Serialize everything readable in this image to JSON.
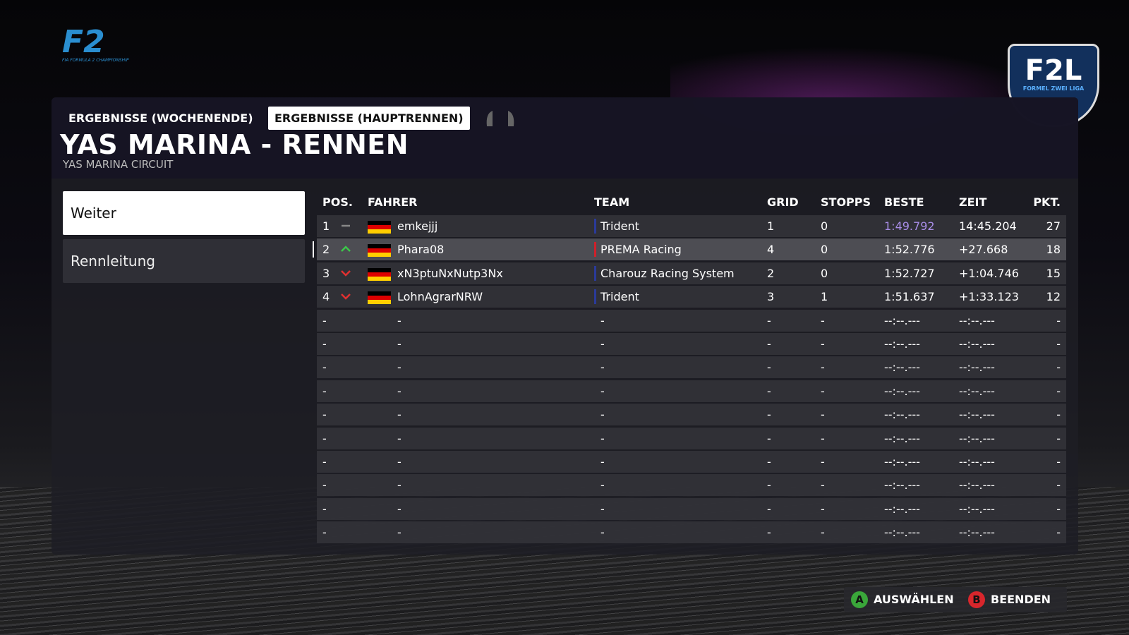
{
  "logo": {
    "text": "F2",
    "subtitle": "FIA FORMULA 2 CHAMPIONSHIP"
  },
  "league_logo": {
    "text": "F2L",
    "subtitle": "FORMEL ZWEI LIGA"
  },
  "tabs": [
    {
      "label": "ERGEBNISSE (WOCHENENDE)",
      "active": false
    },
    {
      "label": "ERGEBNISSE (HAUPTRENNEN)",
      "active": true
    }
  ],
  "header": {
    "title": "YAS MARINA - RENNEN",
    "subtitle": "YAS MARINA CIRCUIT"
  },
  "menu": [
    {
      "label": "Weiter",
      "selected": true
    },
    {
      "label": "Rennleitung",
      "selected": false
    }
  ],
  "table": {
    "columns": [
      "POS.",
      "FAHRER",
      "TEAM",
      "GRID",
      "STOPPS",
      "BESTE",
      "ZEIT",
      "PKT."
    ],
    "rows": [
      {
        "pos": 1,
        "trend": "same",
        "flag": "de",
        "driver": "emkejjj",
        "team": "Trident",
        "team_color": "#2a3a9a",
        "grid": 1,
        "stops": 0,
        "best": "1:49.792",
        "best_fastest": true,
        "time": "14:45.204",
        "pts": 27
      },
      {
        "pos": 2,
        "trend": "up",
        "flag": "de",
        "driver": "Phara08",
        "team": "PREMA Racing",
        "team_color": "#d0202a",
        "grid": 4,
        "stops": 0,
        "best": "1:52.776",
        "time": "+27.668",
        "pts": 18,
        "selected": true
      },
      {
        "pos": 3,
        "trend": "down",
        "flag": "de",
        "driver": "xN3ptuNxNutp3Nx",
        "team": "Charouz Racing System",
        "team_color": "#2a3a9a",
        "grid": 2,
        "stops": 0,
        "best": "1:52.727",
        "time": "+1:04.746",
        "pts": 15
      },
      {
        "pos": 4,
        "trend": "down",
        "flag": "de",
        "driver": "LohnAgrarNRW",
        "team": "Trident",
        "team_color": "#2a3a9a",
        "grid": 3,
        "stops": 1,
        "best": "1:51.637",
        "time": "+1:33.123",
        "pts": 12
      },
      {
        "pos": "-",
        "driver": "-",
        "team": "-",
        "grid": "-",
        "stops": "-",
        "best": "--:--.---",
        "time": "--:--.---",
        "pts": "-"
      },
      {
        "pos": "-",
        "driver": "-",
        "team": "-",
        "grid": "-",
        "stops": "-",
        "best": "--:--.---",
        "time": "--:--.---",
        "pts": "-"
      },
      {
        "pos": "-",
        "driver": "-",
        "team": "-",
        "grid": "-",
        "stops": "-",
        "best": "--:--.---",
        "time": "--:--.---",
        "pts": "-"
      },
      {
        "pos": "-",
        "driver": "-",
        "team": "-",
        "grid": "-",
        "stops": "-",
        "best": "--:--.---",
        "time": "--:--.---",
        "pts": "-"
      },
      {
        "pos": "-",
        "driver": "-",
        "team": "-",
        "grid": "-",
        "stops": "-",
        "best": "--:--.---",
        "time": "--:--.---",
        "pts": "-"
      },
      {
        "pos": "-",
        "driver": "-",
        "team": "-",
        "grid": "-",
        "stops": "-",
        "best": "--:--.---",
        "time": "--:--.---",
        "pts": "-"
      },
      {
        "pos": "-",
        "driver": "-",
        "team": "-",
        "grid": "-",
        "stops": "-",
        "best": "--:--.---",
        "time": "--:--.---",
        "pts": "-"
      },
      {
        "pos": "-",
        "driver": "-",
        "team": "-",
        "grid": "-",
        "stops": "-",
        "best": "--:--.---",
        "time": "--:--.---",
        "pts": "-"
      },
      {
        "pos": "-",
        "driver": "-",
        "team": "-",
        "grid": "-",
        "stops": "-",
        "best": "--:--.---",
        "time": "--:--.---",
        "pts": "-"
      },
      {
        "pos": "-",
        "driver": "-",
        "team": "-",
        "grid": "-",
        "stops": "-",
        "best": "--:--.---",
        "time": "--:--.---",
        "pts": "-"
      }
    ]
  },
  "footer": {
    "buttons": [
      {
        "key": "A",
        "label": "AUSWÄHLEN",
        "color": "#3aa63a"
      },
      {
        "key": "B",
        "label": "BEENDEN",
        "color": "#d8262c"
      }
    ]
  }
}
